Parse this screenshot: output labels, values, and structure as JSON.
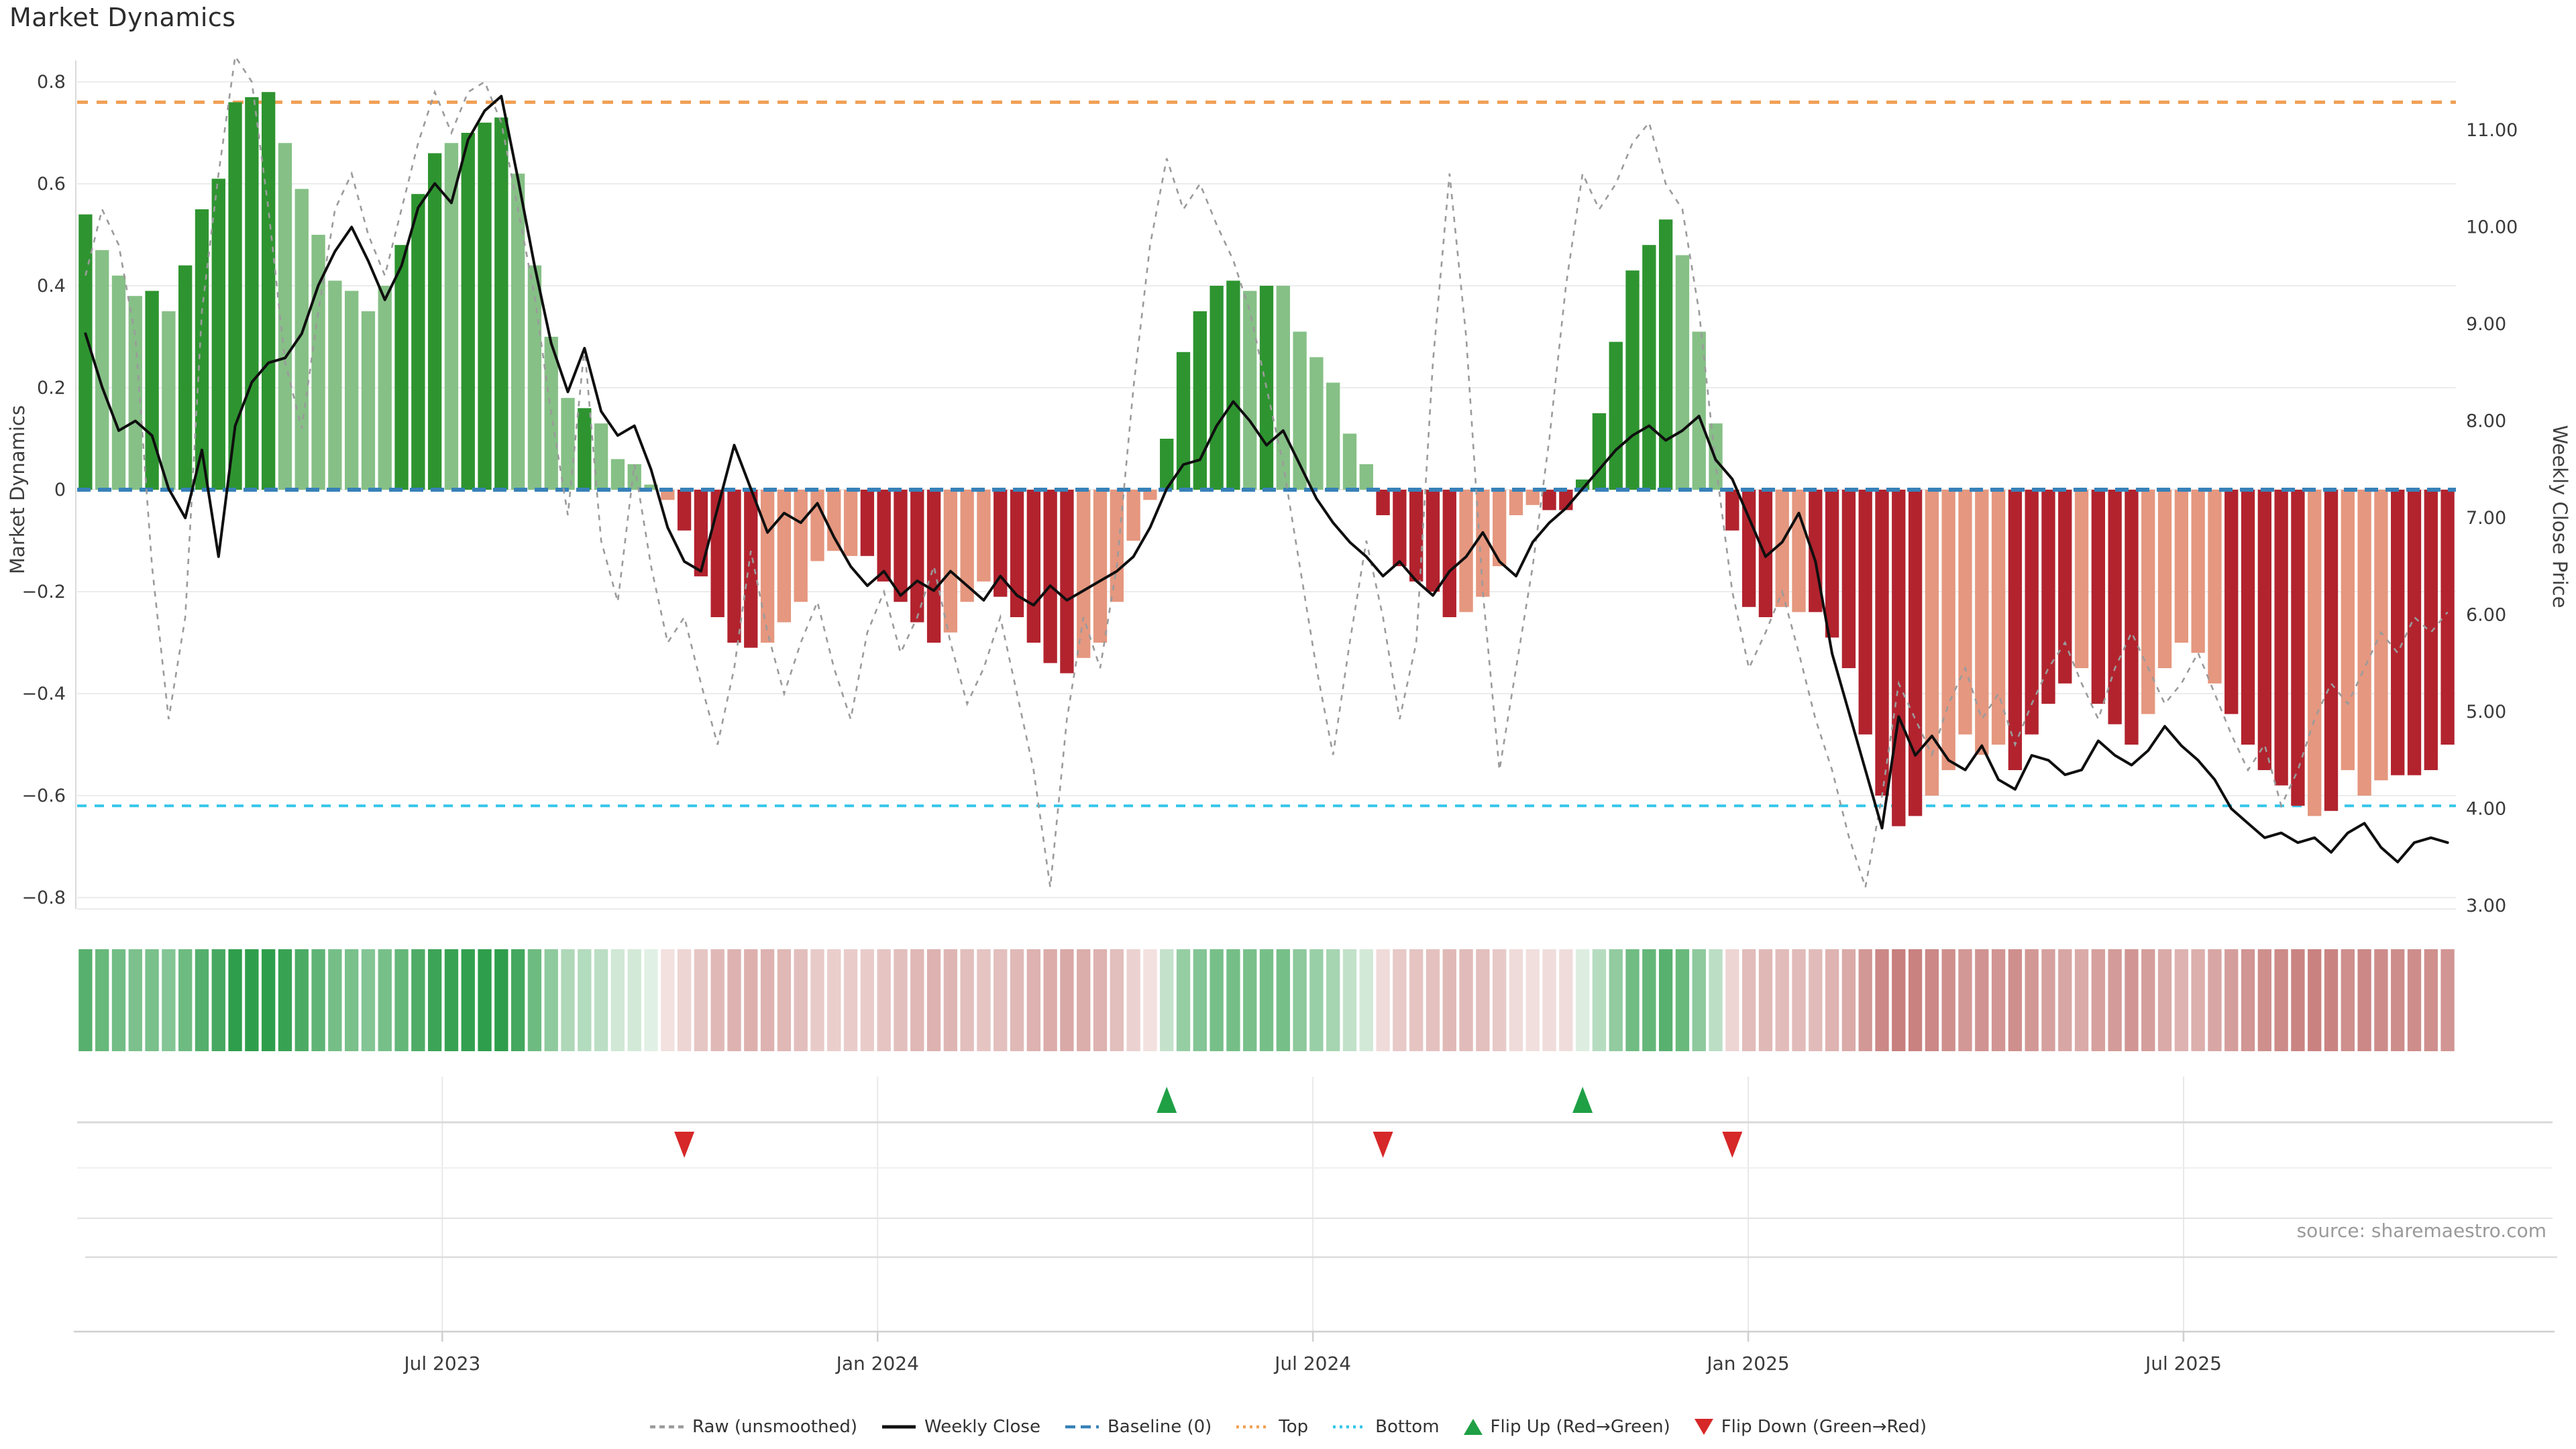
{
  "title": "Market Dynamics",
  "source": "source: sharemaestro.com",
  "axes": {
    "left": {
      "label": "Market Dynamics",
      "tick_labels": [
        "0.8",
        "0.6",
        "0.4",
        "0.2",
        "0",
        "−0.2",
        "−0.4",
        "−0.6",
        "−0.8"
      ],
      "tick_values": [
        0.8,
        0.6,
        0.4,
        0.2,
        0,
        -0.2,
        -0.4,
        -0.6,
        -0.8
      ]
    },
    "right": {
      "label": "Weekly Close Price",
      "tick_labels": [
        "11.00",
        "10.00",
        "9.00",
        "8.00",
        "7.00",
        "6.00",
        "5.00",
        "4.00",
        "3.00"
      ],
      "tick_values": [
        11,
        10,
        9,
        8,
        7,
        6,
        5,
        4,
        3
      ]
    },
    "x": {
      "tick_labels": [
        "Jul 2023",
        "Jan 2024",
        "Jul 2024",
        "Jan 2025",
        "Jul 2025"
      ],
      "positions": [
        0.1535,
        0.3365,
        0.5195,
        0.7025,
        0.8855
      ]
    }
  },
  "legend": {
    "items": [
      {
        "label": "Raw (unsmoothed)",
        "type": "dashed-line",
        "color": "#9b9b9b"
      },
      {
        "label": "Weekly Close",
        "type": "solid-line",
        "color": "#111111"
      },
      {
        "label": "Baseline (0)",
        "type": "long-dash-line",
        "color": "#3781b8"
      },
      {
        "label": "Top",
        "type": "dotted-line",
        "color": "#f0a055"
      },
      {
        "label": "Bottom",
        "type": "dotted-line",
        "color": "#35c6ea"
      },
      {
        "label": "Flip Up (Red→Green)",
        "type": "triangle-up",
        "color": "#1fa045"
      },
      {
        "label": "Flip Down (Green→Red)",
        "type": "triangle-down",
        "color": "#d62828"
      }
    ]
  },
  "chart_data": {
    "type": "bar",
    "title": "Market Dynamics",
    "ylabel_left": "Market Dynamics",
    "ylabel_right": "Weekly Close Price",
    "left_axis_range": [
      -0.8,
      0.8
    ],
    "right_axis_range": [
      3.0,
      11.0
    ],
    "baseline": 0,
    "top_line": 0.76,
    "bottom_line": -0.62,
    "grid": true,
    "legend_position": "bottom-center",
    "colors": {
      "dark_green": "#2e9430",
      "light_green": "#86c086",
      "dark_red": "#b2232e",
      "salmon": "#e5977f",
      "baseline": "#3781b8",
      "top": "#f0a055",
      "bottom": "#35c6ea",
      "weekly_close": "#0f0f0f",
      "raw": "#9b9b9b",
      "grid": "#ececec",
      "heat_green_hi": "#2f9e4c",
      "heat_green_lo": "#e6f2e8",
      "heat_red_hi": "#c47876",
      "heat_red_lo": "#f4e6e4",
      "flip_up": "#1fa045",
      "flip_down": "#d62828"
    },
    "bars": {
      "values": [
        0.54,
        0.47,
        0.42,
        0.38,
        0.39,
        0.35,
        0.44,
        0.55,
        0.61,
        0.76,
        0.77,
        0.78,
        0.68,
        0.59,
        0.5,
        0.41,
        0.39,
        0.35,
        0.4,
        0.48,
        0.58,
        0.66,
        0.68,
        0.7,
        0.72,
        0.73,
        0.62,
        0.44,
        0.3,
        0.18,
        0.16,
        0.13,
        0.06,
        0.05,
        0.01,
        -0.02,
        -0.08,
        -0.17,
        -0.25,
        -0.3,
        -0.31,
        -0.3,
        -0.26,
        -0.22,
        -0.14,
        -0.12,
        -0.13,
        -0.13,
        -0.18,
        -0.22,
        -0.26,
        -0.3,
        -0.28,
        -0.22,
        -0.18,
        -0.21,
        -0.25,
        -0.3,
        -0.34,
        -0.36,
        -0.33,
        -0.3,
        -0.22,
        -0.1,
        -0.02,
        0.1,
        0.27,
        0.35,
        0.4,
        0.41,
        0.39,
        0.4,
        0.4,
        0.31,
        0.26,
        0.21,
        0.11,
        0.05,
        -0.05,
        -0.15,
        -0.18,
        -0.2,
        -0.25,
        -0.24,
        -0.21,
        -0.15,
        -0.05,
        -0.03,
        -0.04,
        -0.04,
        0.02,
        0.15,
        0.29,
        0.43,
        0.48,
        0.53,
        0.46,
        0.31,
        0.13,
        -0.08,
        -0.23,
        -0.25,
        -0.23,
        -0.24,
        -0.24,
        -0.29,
        -0.35,
        -0.48,
        -0.6,
        -0.66,
        -0.64,
        -0.6,
        -0.55,
        -0.48,
        -0.52,
        -0.5,
        -0.55,
        -0.48,
        -0.42,
        -0.38,
        -0.35,
        -0.42,
        -0.46,
        -0.5,
        -0.44,
        -0.35,
        -0.3,
        -0.32,
        -0.38,
        -0.44,
        -0.5,
        -0.55,
        -0.58,
        -0.62,
        -0.64,
        -0.63,
        -0.55,
        -0.6,
        -0.57,
        -0.56,
        -0.56,
        -0.55,
        -0.5
      ],
      "colors": [
        "dg",
        "lg",
        "lg",
        "lg",
        "dg",
        "lg",
        "dg",
        "dg",
        "dg",
        "dg",
        "dg",
        "dg",
        "lg",
        "lg",
        "lg",
        "lg",
        "lg",
        "lg",
        "lg",
        "dg",
        "dg",
        "dg",
        "lg",
        "dg",
        "dg",
        "dg",
        "lg",
        "lg",
        "lg",
        "lg",
        "dg",
        "lg",
        "lg",
        "lg",
        "lg",
        "sr",
        "dr",
        "dr",
        "dr",
        "dr",
        "dr",
        "sr",
        "sr",
        "sr",
        "sr",
        "sr",
        "sr",
        "dr",
        "dr",
        "dr",
        "dr",
        "dr",
        "sr",
        "sr",
        "sr",
        "dr",
        "dr",
        "dr",
        "dr",
        "dr",
        "sr",
        "sr",
        "sr",
        "sr",
        "sr",
        "dg",
        "dg",
        "dg",
        "dg",
        "dg",
        "lg",
        "dg",
        "lg",
        "lg",
        "lg",
        "lg",
        "lg",
        "lg",
        "dr",
        "dr",
        "dr",
        "dr",
        "dr",
        "sr",
        "sr",
        "sr",
        "sr",
        "sr",
        "dr",
        "dr",
        "dg",
        "dg",
        "dg",
        "dg",
        "dg",
        "dg",
        "lg",
        "lg",
        "lg",
        "dr",
        "dr",
        "dr",
        "sr",
        "sr",
        "dr",
        "dr",
        "dr",
        "dr",
        "dr",
        "dr",
        "dr",
        "sr",
        "sr",
        "sr",
        "sr",
        "sr",
        "dr",
        "dr",
        "dr",
        "dr",
        "sr",
        "dr",
        "dr",
        "dr",
        "sr",
        "sr",
        "sr",
        "sr",
        "sr",
        "dr",
        "dr",
        "dr",
        "dr",
        "dr",
        "sr",
        "dr",
        "sr",
        "sr",
        "sr",
        "dr",
        "dr",
        "dr",
        "dr"
      ]
    },
    "weekly_close": [
      8.9,
      8.35,
      7.9,
      8.0,
      7.85,
      7.3,
      7.0,
      7.7,
      6.6,
      7.95,
      8.4,
      8.6,
      8.65,
      8.9,
      9.4,
      9.75,
      10.0,
      9.65,
      9.25,
      9.6,
      10.2,
      10.45,
      10.25,
      10.9,
      11.2,
      11.35,
      10.5,
      9.6,
      8.8,
      8.3,
      8.75,
      8.1,
      7.85,
      7.95,
      7.5,
      6.9,
      6.55,
      6.45,
      7.1,
      7.75,
      7.3,
      6.85,
      7.05,
      6.95,
      7.15,
      6.8,
      6.5,
      6.3,
      6.45,
      6.2,
      6.35,
      6.25,
      6.45,
      6.3,
      6.15,
      6.4,
      6.2,
      6.1,
      6.3,
      6.15,
      6.25,
      6.35,
      6.45,
      6.6,
      6.9,
      7.3,
      7.55,
      7.6,
      7.95,
      8.2,
      8.0,
      7.75,
      7.9,
      7.55,
      7.2,
      6.95,
      6.75,
      6.6,
      6.4,
      6.55,
      6.35,
      6.2,
      6.45,
      6.6,
      6.85,
      6.55,
      6.4,
      6.75,
      6.95,
      7.1,
      7.3,
      7.5,
      7.7,
      7.85,
      7.95,
      7.8,
      7.9,
      8.05,
      7.6,
      7.4,
      7.0,
      6.6,
      6.75,
      7.05,
      6.55,
      5.6,
      5.0,
      4.4,
      3.8,
      4.95,
      4.55,
      4.75,
      4.5,
      4.4,
      4.65,
      4.3,
      4.2,
      4.55,
      4.5,
      4.35,
      4.4,
      4.7,
      4.55,
      4.45,
      4.6,
      4.85,
      4.65,
      4.5,
      4.3,
      4.0,
      3.85,
      3.7,
      3.75,
      3.65,
      3.7,
      3.55,
      3.75,
      3.85,
      3.6,
      3.45,
      3.65,
      3.7,
      3.65
    ],
    "raw": [
      0.42,
      0.55,
      0.48,
      0.3,
      -0.15,
      -0.45,
      -0.25,
      0.35,
      0.62,
      0.85,
      0.8,
      0.55,
      0.25,
      0.12,
      0.35,
      0.55,
      0.62,
      0.5,
      0.42,
      0.55,
      0.68,
      0.78,
      0.7,
      0.78,
      0.8,
      0.72,
      0.55,
      0.38,
      0.15,
      -0.05,
      0.28,
      -0.1,
      -0.22,
      0.05,
      -0.15,
      -0.3,
      -0.25,
      -0.38,
      -0.5,
      -0.35,
      -0.12,
      -0.28,
      -0.4,
      -0.3,
      -0.22,
      -0.35,
      -0.45,
      -0.28,
      -0.2,
      -0.32,
      -0.25,
      -0.15,
      -0.3,
      -0.42,
      -0.35,
      -0.25,
      -0.4,
      -0.55,
      -0.78,
      -0.45,
      -0.25,
      -0.35,
      -0.15,
      0.2,
      0.48,
      0.65,
      0.55,
      0.6,
      0.52,
      0.45,
      0.35,
      0.2,
      0.05,
      -0.15,
      -0.35,
      -0.52,
      -0.3,
      -0.1,
      -0.25,
      -0.45,
      -0.3,
      0.25,
      0.62,
      0.3,
      -0.2,
      -0.55,
      -0.35,
      -0.15,
      0.1,
      0.4,
      0.62,
      0.55,
      0.6,
      0.68,
      0.72,
      0.6,
      0.55,
      0.35,
      0.05,
      -0.2,
      -0.35,
      -0.28,
      -0.2,
      -0.32,
      -0.45,
      -0.55,
      -0.68,
      -0.78,
      -0.6,
      -0.38,
      -0.45,
      -0.52,
      -0.42,
      -0.35,
      -0.45,
      -0.4,
      -0.5,
      -0.42,
      -0.35,
      -0.3,
      -0.38,
      -0.45,
      -0.35,
      -0.28,
      -0.35,
      -0.42,
      -0.38,
      -0.32,
      -0.4,
      -0.48,
      -0.55,
      -0.5,
      -0.62,
      -0.55,
      -0.45,
      -0.38,
      -0.42,
      -0.35,
      -0.28,
      -0.32,
      -0.25,
      -0.28,
      -0.24
    ],
    "markers": {
      "flip_up_weeks": [
        66,
        91
      ],
      "flip_down_weeks": [
        37,
        79,
        100
      ]
    },
    "heatmap": "mirrors bar values as green/red intensity strip"
  }
}
